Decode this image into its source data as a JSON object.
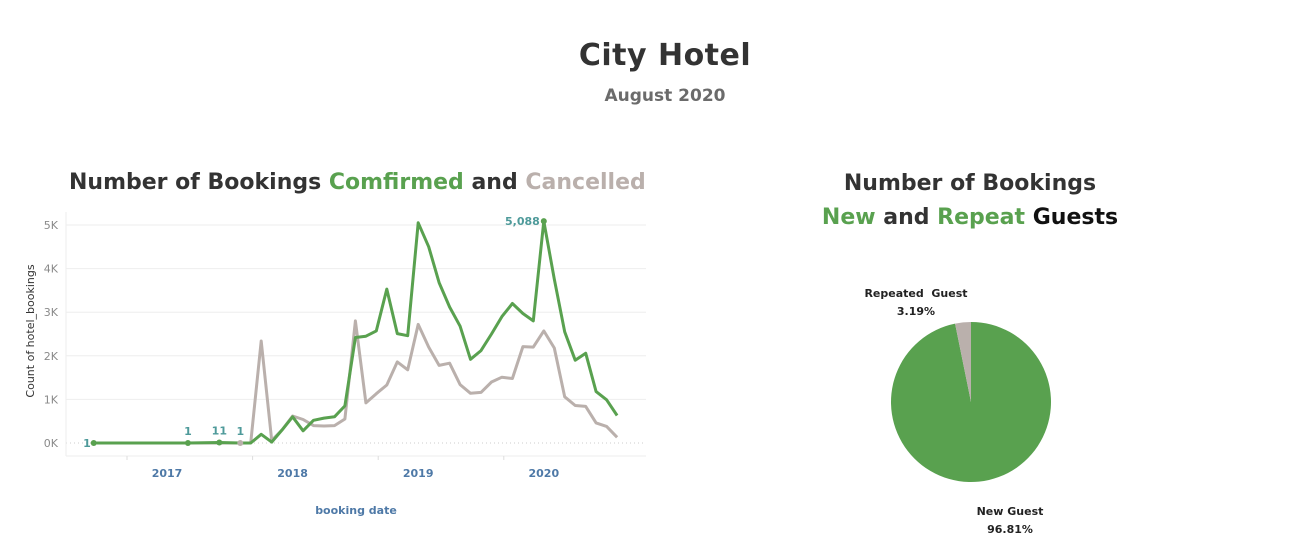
{
  "header": {
    "title": "City Hotel",
    "subtitle": "August 2020"
  },
  "line_chart": {
    "title_parts": {
      "prefix": "Number of Bookings ",
      "confirmed": "Comfirmed",
      "and": " and ",
      "cancelled": "Cancelled"
    },
    "ylabel": "Count of hotel_bookings",
    "xlabel": "booking date",
    "y_ticks": [
      "0K",
      "1K",
      "2K",
      "3K",
      "4K",
      "5K"
    ],
    "x_ticks": [
      "2017",
      "2018",
      "2019",
      "2020"
    ],
    "annotations": {
      "first": "1",
      "a": "1",
      "b": "11",
      "c": "1",
      "peak": "5,088"
    }
  },
  "pie_chart": {
    "title_line1": "Number of Bookings",
    "title_new": "New",
    "title_and": " and ",
    "title_repeat": "Repeat",
    "title_guests": " Guests",
    "repeated_label": "Repeated  Guest",
    "repeated_pct": "3.19%",
    "new_label": "New Guest",
    "new_pct": "96.81%"
  },
  "colors": {
    "confirmed": "#59a14f",
    "cancelled": "#bab0ac",
    "axis_text": "#4e79a7",
    "annotation": "#4e9a9a"
  },
  "chart_data": [
    {
      "type": "line",
      "title": "Number of Bookings Comfirmed and Cancelled",
      "xlabel": "booking date",
      "ylabel": "Count of hotel_bookings",
      "ylim": [
        0,
        5200
      ],
      "grid": true,
      "x": [
        "2016-06",
        "2017-03",
        "2017-06",
        "2017-08",
        "2017-09",
        "2017-10",
        "2017-11",
        "2017-12",
        "2018-01",
        "2018-02",
        "2018-03",
        "2018-04",
        "2018-05",
        "2018-06",
        "2018-07",
        "2018-08",
        "2018-09",
        "2018-10",
        "2018-11",
        "2018-12",
        "2019-01",
        "2019-02",
        "2019-03",
        "2019-04",
        "2019-05",
        "2019-06",
        "2019-07",
        "2019-08",
        "2019-09",
        "2019-10",
        "2019-11",
        "2019-12",
        "2020-01",
        "2020-02",
        "2020-03",
        "2020-04",
        "2020-05",
        "2020-06",
        "2020-07",
        "2020-08"
      ],
      "series": [
        {
          "name": "Confirmed",
          "color": "#59a14f",
          "values": [
            1,
            1,
            11,
            1,
            0,
            200,
            20,
            300,
            600,
            280,
            520,
            570,
            600,
            850,
            2420,
            2450,
            2570,
            3530,
            2510,
            2460,
            5050,
            4500,
            3680,
            3120,
            2680,
            1920,
            2120,
            2500,
            2900,
            3200,
            2970,
            2800,
            5088,
            3760,
            2550,
            1900,
            2060,
            1180,
            990,
            630
          ]
        },
        {
          "name": "Cancelled",
          "color": "#bab0ac",
          "values": [
            0,
            0,
            0,
            1,
            0,
            2340,
            60,
            300,
            620,
            540,
            400,
            390,
            400,
            550,
            2800,
            920,
            1130,
            1330,
            1860,
            1680,
            2720,
            2200,
            1780,
            1830,
            1340,
            1140,
            1160,
            1400,
            1510,
            1480,
            2210,
            2200,
            2570,
            2180,
            1060,
            860,
            840,
            460,
            380,
            130
          ]
        }
      ],
      "annotations": [
        {
          "x": "2016-06",
          "label": "1"
        },
        {
          "x": "2017-03",
          "label": "1"
        },
        {
          "x": "2017-06",
          "label": "11"
        },
        {
          "x": "2017-08",
          "label": "1"
        },
        {
          "x": "2020-01",
          "label": "5,088"
        }
      ]
    },
    {
      "type": "pie",
      "title": "Number of Bookings New and Repeat Guests",
      "categories": [
        "New Guest",
        "Repeated Guest"
      ],
      "values": [
        96.81,
        3.19
      ],
      "colors": [
        "#59a14f",
        "#bab0ac"
      ]
    }
  ]
}
